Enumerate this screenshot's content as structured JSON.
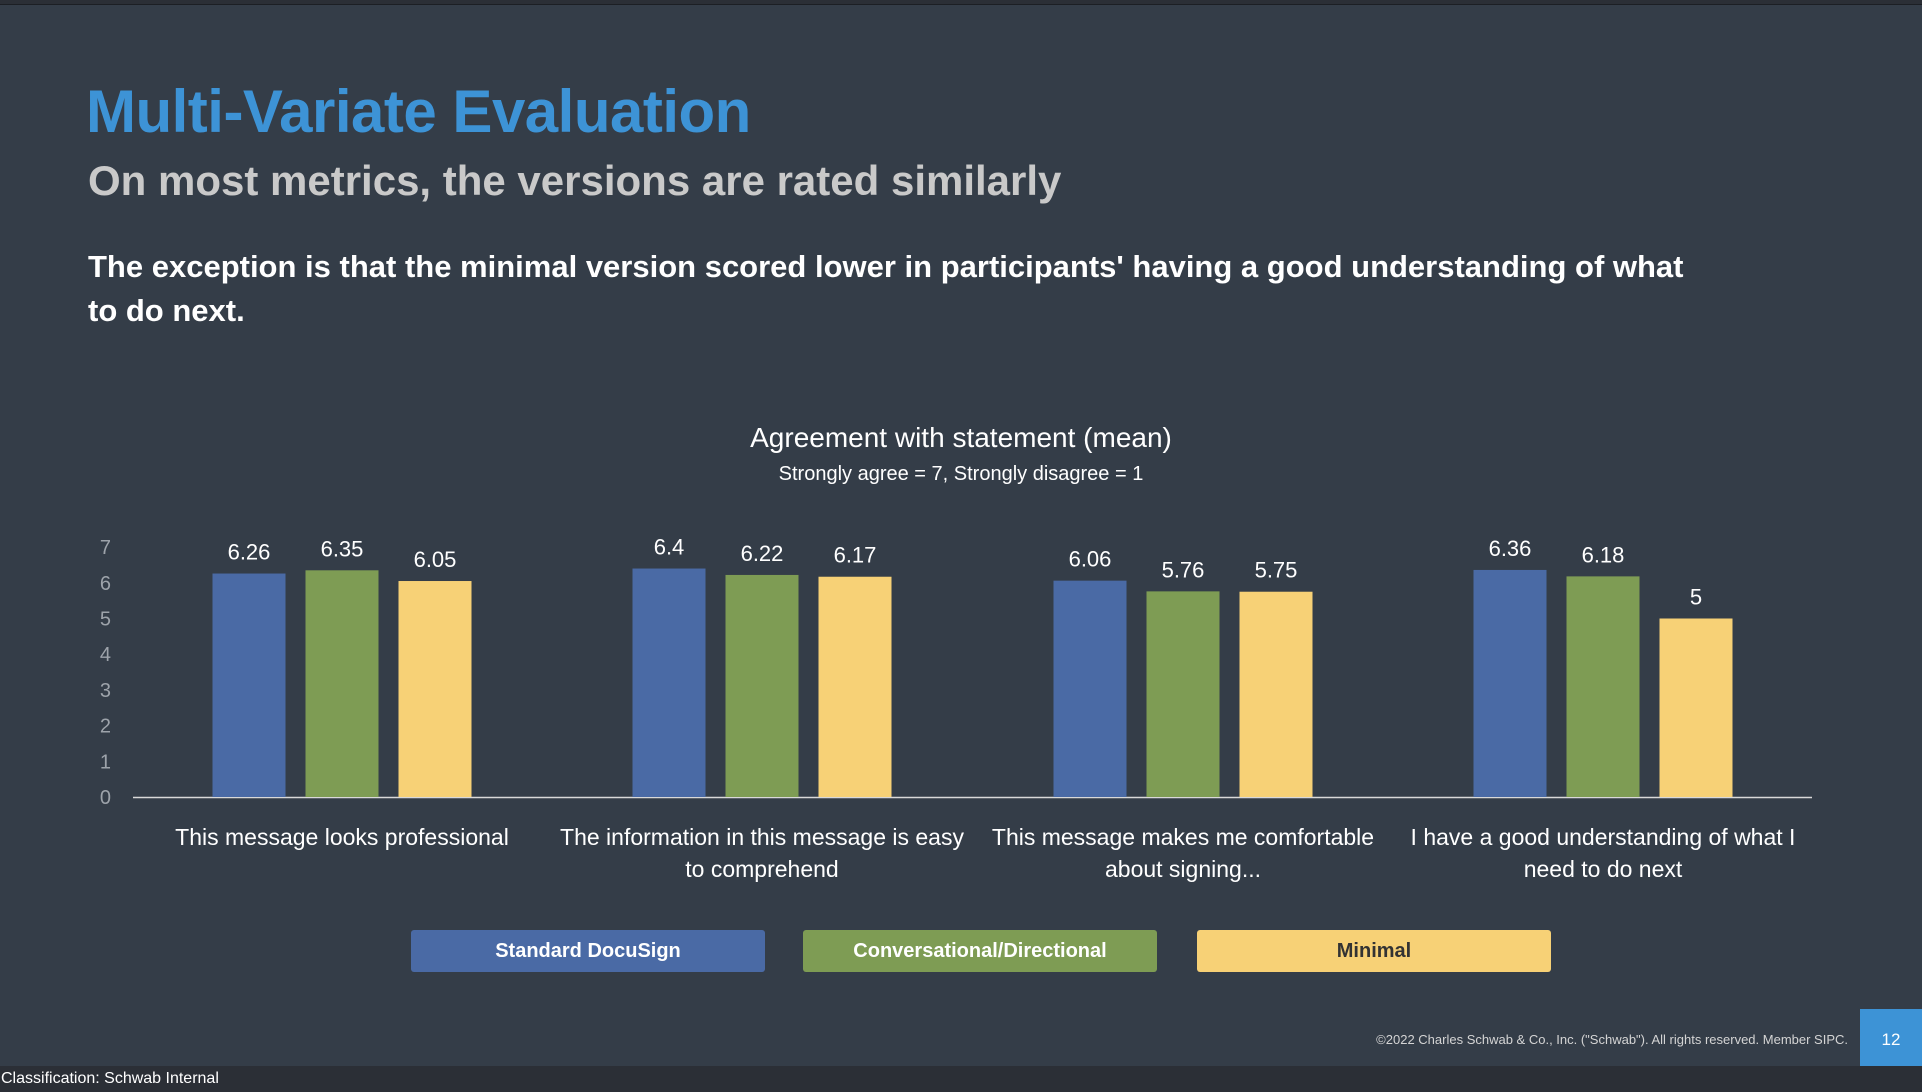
{
  "slide": {
    "title": "Multi-Variate Evaluation",
    "subtitle": "On most metrics, the versions are rated similarly",
    "body": "The exception is that the minimal version scored lower in participants' having a good understanding of what to do next.",
    "copyright": "©2022 Charles Schwab & Co., Inc. (\"Schwab\"). All rights reserved. Member SIPC.",
    "page_number": "12",
    "classification": "Classification: Schwab Internal"
  },
  "chart_data": {
    "type": "bar",
    "title": "Agreement  with statement (mean)",
    "subtitle": "Strongly agree = 7, Strongly disagree = 1",
    "categories": [
      "This message looks professional",
      "The information in this message is easy to comprehend",
      "This message makes me comfortable about signing...",
      "I have a good understanding of what I need to do next"
    ],
    "category_lines": [
      [
        "This message looks professional"
      ],
      [
        "The information in this message is easy",
        "to comprehend"
      ],
      [
        "This message makes me comfortable",
        "about signing..."
      ],
      [
        "I have a good understanding of what I",
        "need to do next"
      ]
    ],
    "series": [
      {
        "name": "Standard DocuSign",
        "color": "#4a6aa5",
        "values": [
          6.26,
          6.4,
          6.06,
          6.36
        ],
        "labels": [
          "6.26",
          "6.4",
          "6.06",
          "6.36"
        ]
      },
      {
        "name": "Conversational/Directional",
        "color": "#7e9c54",
        "values": [
          6.35,
          6.22,
          5.76,
          6.18
        ],
        "labels": [
          "6.35",
          "6.22",
          "5.76",
          "6.18"
        ]
      },
      {
        "name": "Minimal",
        "color": "#f7d176",
        "values": [
          6.05,
          6.17,
          5.75,
          5
        ],
        "labels": [
          "6.05",
          "6.17",
          "5.75",
          "5"
        ]
      }
    ],
    "ylim": [
      0,
      7
    ],
    "yticks": [
      "0",
      "1",
      "2",
      "3",
      "4",
      "5",
      "6",
      "7"
    ],
    "grid": false,
    "legend_position": "bottom"
  }
}
